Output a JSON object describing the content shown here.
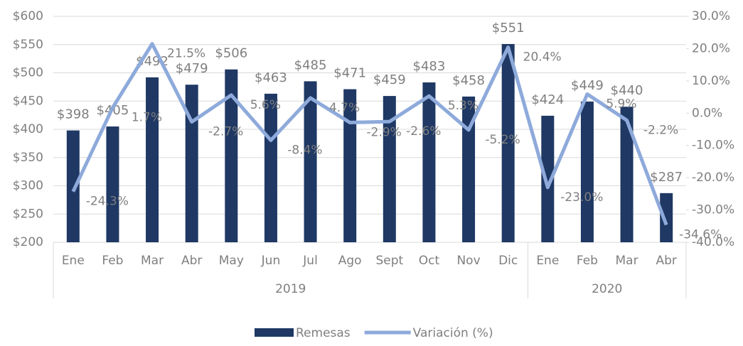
{
  "chart_data": {
    "type": "bar-line",
    "categories": [
      "Ene",
      "Feb",
      "Mar",
      "Abr",
      "May",
      "Jun",
      "Jul",
      "Ago",
      "Sept",
      "Oct",
      "Nov",
      "Dic",
      "Ene",
      "Feb",
      "Mar",
      "Abr"
    ],
    "groups": [
      {
        "label": "2019",
        "span": 12
      },
      {
        "label": "2020",
        "span": 4
      }
    ],
    "series": [
      {
        "name": "Remesas",
        "type": "bar",
        "color": "#1f3864",
        "values": [
          398,
          405,
          492,
          479,
          506,
          463,
          485,
          471,
          459,
          483,
          458,
          551,
          424,
          449,
          440,
          287
        ],
        "value_labels": [
          "$398",
          "$405",
          "$492",
          "$479",
          "$506",
          "$463",
          "$485",
          "$471",
          "$459",
          "$483",
          "$458",
          "$551",
          "$424",
          "$449",
          "$440",
          "$287"
        ]
      },
      {
        "name": "Variación (%)",
        "type": "line",
        "axis": "y2",
        "color": "#8eaadb",
        "values": [
          -24.3,
          1.7,
          21.5,
          -2.7,
          5.6,
          -8.4,
          4.7,
          -2.9,
          -2.6,
          5.3,
          -5.2,
          20.4,
          -23.0,
          5.9,
          -2.2,
          -34.6
        ],
        "value_labels": [
          "-24.3%",
          "1.7%",
          "21.5%",
          "-2.7%",
          "5.6%",
          "-8.4%",
          "4.7%",
          "-2.9%",
          "-2.6%",
          "5.3%",
          "-5.2%",
          "20.4%",
          "-23.0%",
          "5.9%",
          "-2.2%",
          "-34.6%"
        ]
      }
    ],
    "ylim": [
      200,
      600
    ],
    "yticks": [
      {
        "value": 200,
        "label": "$200"
      },
      {
        "value": 250,
        "label": "$250"
      },
      {
        "value": 300,
        "label": "$300"
      },
      {
        "value": 350,
        "label": "$350"
      },
      {
        "value": 400,
        "label": "$400"
      },
      {
        "value": 450,
        "label": "$450"
      },
      {
        "value": 500,
        "label": "$500"
      },
      {
        "value": 550,
        "label": "$550"
      },
      {
        "value": 600,
        "label": "$600"
      }
    ],
    "y2lim": [
      -40,
      30
    ],
    "y2ticks": [
      {
        "value": -40,
        "label": "-40.0%"
      },
      {
        "value": -30,
        "label": "-30.0%"
      },
      {
        "value": -20,
        "label": "-20.0%"
      },
      {
        "value": -10,
        "label": "-10.0%"
      },
      {
        "value": 0,
        "label": "0.0%"
      },
      {
        "value": 10,
        "label": "10.0%"
      },
      {
        "value": 20,
        "label": "20.0%"
      },
      {
        "value": 30,
        "label": "30.0%"
      }
    ],
    "grid": true,
    "legend": "bottom"
  }
}
